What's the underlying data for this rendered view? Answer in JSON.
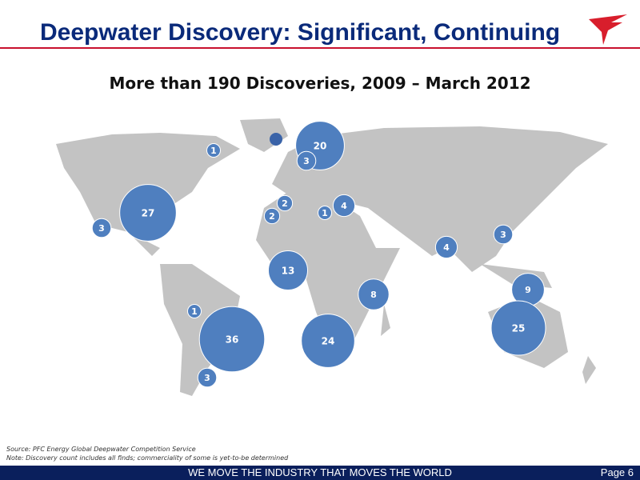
{
  "header": {
    "title": "Deepwater Discovery:  Significant, Continuing",
    "subtitle": "More than 190 Discoveries, 2009 – March 2012"
  },
  "bubbles": [
    1,
    20,
    3,
    27,
    3,
    2,
    2,
    1,
    4,
    13,
    8,
    4,
    3,
    9,
    25,
    1,
    36,
    24,
    3
  ],
  "notes": {
    "source": "Source: PFC Energy Global Deepwater Competition Service",
    "note": "Note: Discovery count includes all finds; commerciality of some is yet-to-be determined"
  },
  "footer": {
    "tagline": "WE MOVE THE INDUSTRY THAT MOVES THE WORLD",
    "page": "Page 6"
  }
}
